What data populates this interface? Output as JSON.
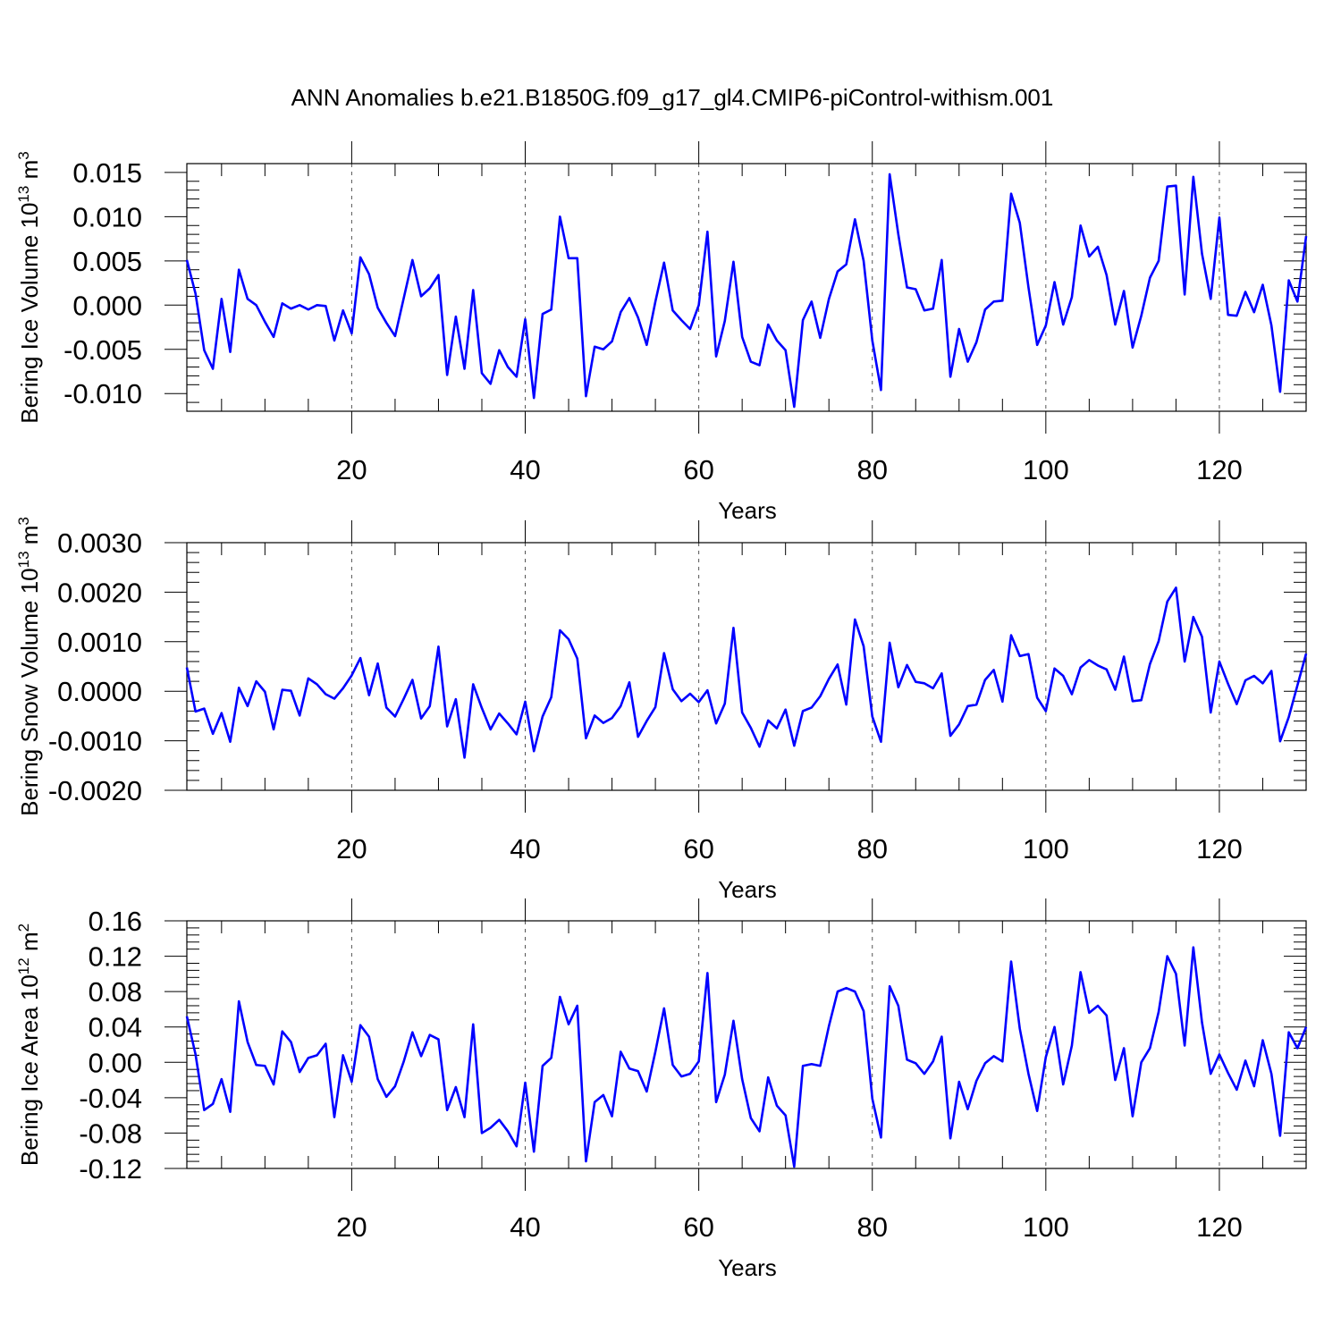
{
  "title": "ANN Anomalies b.e21.B1850G.f09_g17_gl4.CMIP6-piControl-withism.001",
  "chart_data": [
    {
      "type": "line",
      "id": "ice-volume",
      "ylabel": "Bering Ice Volume 10",
      "ylabel_exp": "13",
      "ylabel_unit": " m",
      "ylabel_unit_exp": "3",
      "xlabel": "Years",
      "xlim": [
        1,
        130
      ],
      "ylim": [
        -0.012,
        0.016
      ],
      "xticks": [
        20,
        40,
        60,
        80,
        100,
        120
      ],
      "xtick_labels": [
        "20",
        "40",
        "60",
        "80",
        "100",
        "120"
      ],
      "yticks": [
        -0.01,
        -0.005,
        0.0,
        0.005,
        0.01,
        0.015
      ],
      "ytick_labels": [
        "-0.010",
        "-0.005",
        "0.000",
        "0.005",
        "0.010",
        "0.015"
      ],
      "grid": "vertical dashed",
      "series": [
        {
          "name": "Bering Ice Volume",
          "color": "#0000ff",
          "values": [
            0.0051,
            0.0013,
            -0.0051,
            -0.0072,
            0.0007,
            -0.0053,
            0.004,
            0.0007,
            0.0,
            -0.0019,
            -0.0036,
            0.0002,
            -0.0004,
            0.0,
            -0.0005,
            0.0,
            -0.0001,
            -0.004,
            -0.0006,
            -0.0032,
            0.0054,
            0.0035,
            -0.0003,
            -0.002,
            -0.0035,
            0.0008,
            0.0051,
            0.001,
            0.0019,
            0.0034,
            -0.0079,
            -0.0013,
            -0.0072,
            0.0017,
            -0.0077,
            -0.0089,
            -0.0051,
            -0.007,
            -0.0081,
            -0.0016,
            -0.0105,
            -0.001,
            -0.0005,
            0.01,
            0.0053,
            0.0053,
            -0.0103,
            -0.0047,
            -0.005,
            -0.0041,
            -0.0008,
            0.0008,
            -0.0014,
            -0.0045,
            0.0004,
            0.0048,
            -0.0006,
            -0.0017,
            -0.0027,
            0.0,
            0.0083,
            -0.0058,
            -0.0018,
            0.0049,
            -0.0036,
            -0.0064,
            -0.0068,
            -0.0022,
            -0.004,
            -0.0051,
            -0.0115,
            -0.0017,
            0.0004,
            -0.0037,
            0.0007,
            0.0038,
            0.0046,
            0.0097,
            0.005,
            -0.004,
            -0.0096,
            0.0148,
            0.008,
            0.002,
            0.0018,
            -0.0006,
            -0.0004,
            0.0051,
            -0.0081,
            -0.0027,
            -0.0064,
            -0.0042,
            -0.0005,
            0.0004,
            0.0005,
            0.0126,
            0.0093,
            0.002,
            -0.0045,
            -0.0023,
            0.0026,
            -0.0022,
            0.0009,
            0.009,
            0.0055,
            0.0066,
            0.0034,
            -0.0022,
            0.0016,
            -0.0048,
            -0.0012,
            0.0031,
            0.005,
            0.0134,
            0.0135,
            0.0012,
            0.0145,
            0.0058,
            0.0007,
            0.0099,
            -0.0011,
            -0.0012,
            0.0015,
            -0.0008,
            0.0023,
            -0.0023,
            -0.0098,
            0.0028,
            0.0004,
            0.0078
          ]
        }
      ]
    },
    {
      "type": "line",
      "id": "snow-volume",
      "ylabel": "Bering Snow Volume 10",
      "ylabel_exp": "13",
      "ylabel_unit": " m",
      "ylabel_unit_exp": "3",
      "xlabel": "Years",
      "xlim": [
        1,
        130
      ],
      "ylim": [
        -0.002,
        0.003
      ],
      "xticks": [
        20,
        40,
        60,
        80,
        100,
        120
      ],
      "xtick_labels": [
        "20",
        "40",
        "60",
        "80",
        "100",
        "120"
      ],
      "yticks": [
        -0.002,
        -0.001,
        0.0,
        0.001,
        0.002,
        0.003
      ],
      "ytick_labels": [
        "-0.0020",
        "-0.0010",
        "0.0000",
        "0.0010",
        "0.0020",
        "0.0030"
      ],
      "grid": "vertical dashed",
      "series": [
        {
          "name": "Bering Snow Volume",
          "color": "#0000ff",
          "values": [
            0.00048,
            -0.00041,
            -0.00035,
            -0.00086,
            -0.00044,
            -0.00102,
            7e-05,
            -0.0003,
            0.0002,
            -1e-05,
            -0.00077,
            3e-05,
            1e-05,
            -0.00049,
            0.00026,
            0.00014,
            -6e-05,
            -0.00015,
            6e-05,
            0.00032,
            0.00067,
            -8e-05,
            0.00056,
            -0.00033,
            -0.00051,
            -0.00015,
            0.00023,
            -0.00055,
            -0.0003,
            0.0009,
            -0.00071,
            -0.00016,
            -0.00134,
            0.00014,
            -0.00034,
            -0.00077,
            -0.00045,
            -0.00065,
            -0.00087,
            -0.00021,
            -0.00121,
            -0.00051,
            -0.00012,
            0.00123,
            0.00105,
            0.00066,
            -0.00095,
            -0.00049,
            -0.00064,
            -0.00054,
            -0.0003,
            0.00018,
            -0.00092,
            -0.0006,
            -0.00032,
            0.00077,
            4e-05,
            -0.0002,
            -5e-05,
            -0.00022,
            2e-05,
            -0.00065,
            -0.00025,
            0.00128,
            -0.00043,
            -0.00074,
            -0.00112,
            -0.00059,
            -0.00075,
            -0.00037,
            -0.0011,
            -0.0004,
            -0.00033,
            -0.0001,
            0.00025,
            0.00054,
            -0.00027,
            0.00145,
            0.00091,
            -0.00051,
            -0.00102,
            0.00098,
            8e-05,
            0.00053,
            0.00019,
            0.00016,
            6e-05,
            0.00036,
            -0.0009,
            -0.00067,
            -0.0003,
            -0.00027,
            0.00023,
            0.00043,
            -0.00021,
            0.00113,
            0.00071,
            0.00075,
            -0.00013,
            -0.0004,
            0.00046,
            0.00031,
            -6e-05,
            0.00048,
            0.00063,
            0.00052,
            0.00044,
            3e-05,
            0.0007,
            -0.0002,
            -0.00018,
            0.00055,
            0.00101,
            0.00181,
            0.00209,
            0.0006,
            0.0015,
            0.0011,
            -0.00043,
            0.0006,
            0.00015,
            -0.00026,
            0.00022,
            0.00031,
            0.00016,
            0.00041,
            -0.00101,
            -0.00052,
            0.00012,
            0.00076
          ]
        }
      ]
    },
    {
      "type": "line",
      "id": "ice-area",
      "ylabel": "Bering Ice Area 10",
      "ylabel_exp": "12",
      "ylabel_unit": " m",
      "ylabel_unit_exp": "2",
      "xlabel": "Years",
      "xlim": [
        1,
        130
      ],
      "ylim": [
        -0.12,
        0.16
      ],
      "xticks": [
        20,
        40,
        60,
        80,
        100,
        120
      ],
      "xtick_labels": [
        "20",
        "40",
        "60",
        "80",
        "100",
        "120"
      ],
      "yticks": [
        -0.12,
        -0.08,
        -0.04,
        0.0,
        0.04,
        0.08,
        0.12,
        0.16
      ],
      "ytick_labels": [
        "-0.12",
        "-0.08",
        "-0.04",
        "0.00",
        "0.04",
        "0.08",
        "0.12",
        "0.16"
      ],
      "grid": "vertical dashed",
      "series": [
        {
          "name": "Bering Ice Area",
          "color": "#0000ff",
          "values": [
            0.052,
            0.009,
            -0.054,
            -0.047,
            -0.019,
            -0.056,
            0.069,
            0.023,
            -0.003,
            -0.004,
            -0.025,
            0.035,
            0.023,
            -0.011,
            0.005,
            0.008,
            0.021,
            -0.062,
            0.008,
            -0.022,
            0.042,
            0.029,
            -0.019,
            -0.039,
            -0.027,
            0.001,
            0.034,
            0.007,
            0.031,
            0.026,
            -0.054,
            -0.028,
            -0.062,
            0.043,
            -0.08,
            -0.074,
            -0.065,
            -0.078,
            -0.095,
            -0.023,
            -0.101,
            -0.004,
            0.005,
            0.074,
            0.043,
            0.064,
            -0.112,
            -0.045,
            -0.037,
            -0.061,
            0.012,
            -0.007,
            -0.01,
            -0.033,
            0.012,
            0.061,
            -0.003,
            -0.016,
            -0.013,
            0.001,
            0.101,
            -0.045,
            -0.014,
            0.047,
            -0.019,
            -0.063,
            -0.078,
            -0.017,
            -0.049,
            -0.06,
            -0.118,
            -0.004,
            -0.002,
            -0.004,
            0.041,
            0.08,
            0.084,
            0.08,
            0.058,
            -0.041,
            -0.085,
            0.086,
            0.064,
            0.003,
            -0.001,
            -0.013,
            0.001,
            0.029,
            -0.086,
            -0.022,
            -0.053,
            -0.021,
            -0.001,
            0.007,
            0.001,
            0.114,
            0.038,
            -0.013,
            -0.055,
            0.006,
            0.04,
            -0.025,
            0.019,
            0.102,
            0.056,
            0.064,
            0.053,
            -0.02,
            0.016,
            -0.061,
            0.0,
            0.016,
            0.057,
            0.12,
            0.1,
            0.019,
            0.13,
            0.045,
            -0.013,
            0.009,
            -0.012,
            -0.031,
            0.002,
            -0.027,
            0.025,
            -0.013,
            -0.083,
            0.034,
            0.016,
            0.04
          ]
        }
      ]
    }
  ]
}
